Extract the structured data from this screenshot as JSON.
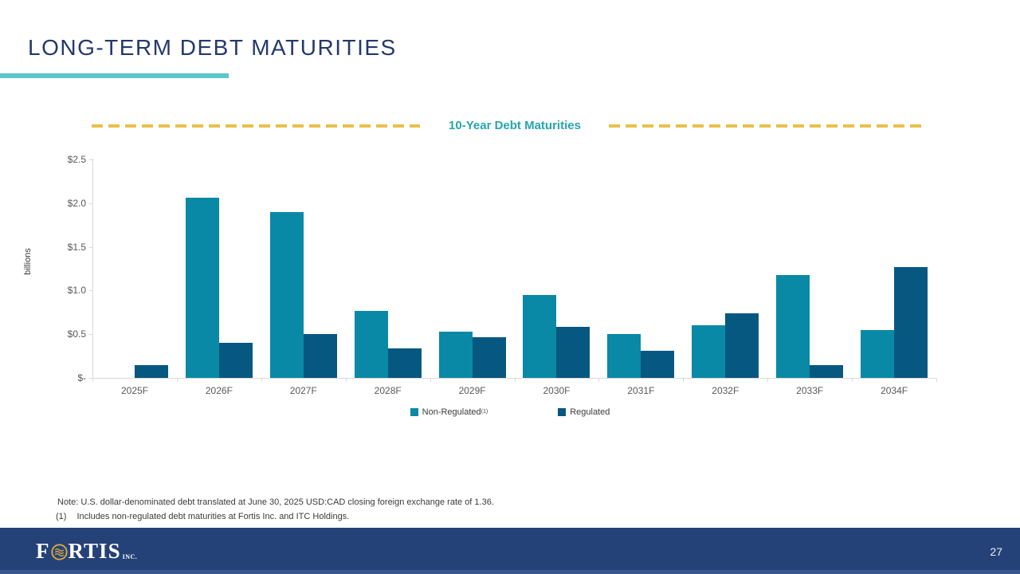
{
  "slide": {
    "title": "LONG-TERM DEBT MATURITIES",
    "page_number": "27",
    "note": "Note: U.S. dollar-denominated debt translated at June 30, 2025 USD:CAD closing foreign exchange rate of 1.36.",
    "footnote_marker": "(1)",
    "footnote_text": "Includes non-regulated debt maturities at Fortis Inc. and ITC Holdings.",
    "logo": {
      "pre": "F",
      "post": "RTIS",
      "suffix": "INC."
    }
  },
  "colors": {
    "navy": "#24396B",
    "teal-accent": "#5BC6CC",
    "chart-title-teal": "#26A5AC",
    "gold": "#E9C04A",
    "bar-teal": "#0989A6",
    "bar-navy": "#075880",
    "axis-gray": "#D9D9D9",
    "text-gray": "#595959",
    "note-color": "#3B3B3B",
    "footer-navy": "#254278",
    "footer-strip": "#3A5690",
    "logo-gold": "#D9A73F",
    "page-num": "#E8EDF7"
  },
  "chart_data": {
    "type": "bar",
    "title": "10-Year Debt Maturities",
    "ylabel": "billions",
    "categories": [
      "2025F",
      "2026F",
      "2027F",
      "2028F",
      "2029F",
      "2030F",
      "2031F",
      "2032F",
      "2033F",
      "2034F"
    ],
    "series": [
      {
        "name": "Non-Regulated",
        "sup": "(1)",
        "color_key": "bar-teal",
        "values": [
          0,
          2.06,
          1.9,
          0.77,
          0.53,
          0.95,
          0.5,
          0.6,
          1.18,
          0.55
        ]
      },
      {
        "name": "Regulated",
        "sup": "",
        "color_key": "bar-navy",
        "values": [
          0.15,
          0.4,
          0.5,
          0.34,
          0.47,
          0.58,
          0.31,
          0.74,
          0.15,
          1.27
        ]
      }
    ],
    "ylim": [
      0,
      2.5
    ],
    "ytick_values": [
      2.5,
      2.0,
      1.5,
      1.0,
      0.5,
      0
    ],
    "ytick_labels": [
      "$2.5",
      "$2.0",
      "$1.5",
      "$1.0",
      "$0.5",
      "$-"
    ],
    "grid": false,
    "legend_position": "bottom"
  }
}
